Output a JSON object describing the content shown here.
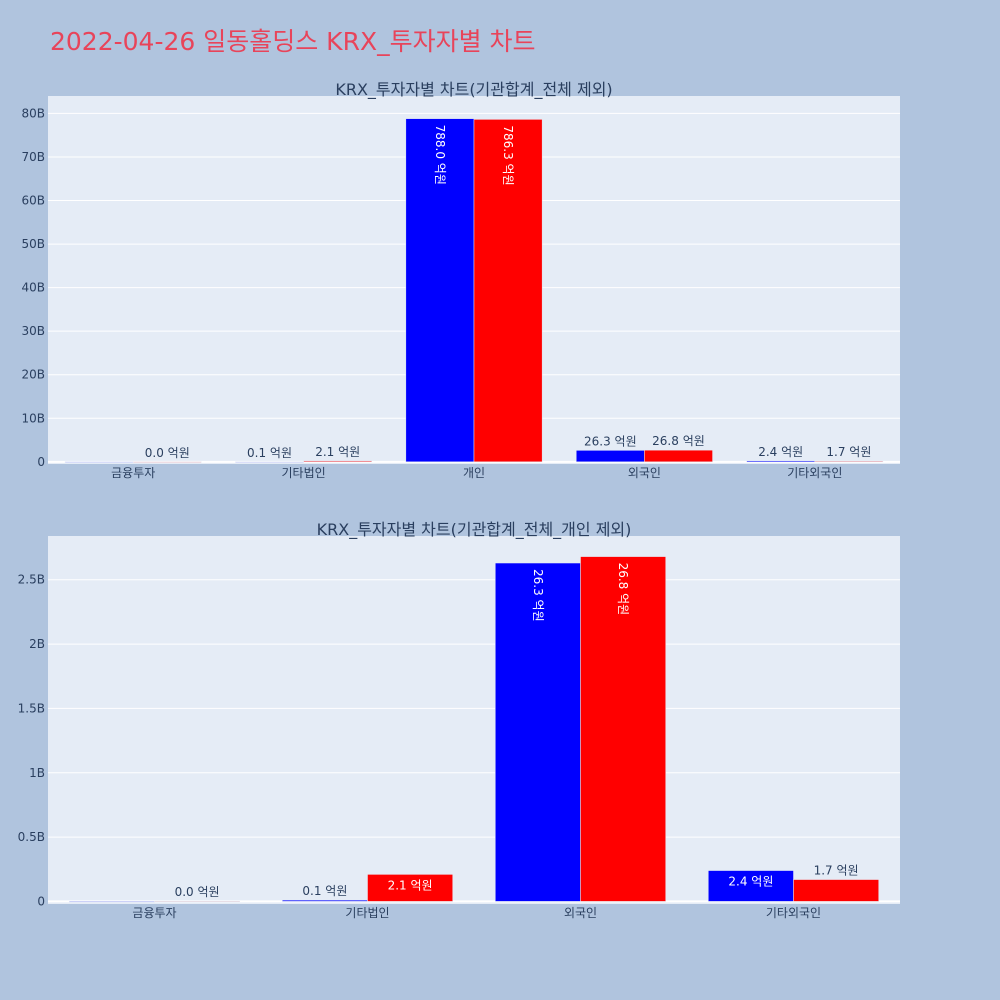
{
  "page_title": "2022-04-26 일동홀딩스 KRX_투자자별 차트",
  "colors": {
    "background": "#b0c4de",
    "plot_bg": "#e5ecf6",
    "title": "#e8445a",
    "series_a": "#0000ff",
    "series_b": "#ff0000"
  },
  "chart_data": [
    {
      "type": "bar",
      "title": "KRX_투자자별 차트(기관합계_전체 제외)",
      "categories": [
        "금융투자",
        "기타법인",
        "개인",
        "외국인",
        "기타외국인"
      ],
      "series": [
        {
          "color": "#0000ff",
          "values": [
            0,
            0.01,
            78.8,
            2.63,
            0.24
          ],
          "labels": [
            "",
            "0.1 억원",
            "788.0 억원",
            "26.3 억원",
            "2.4 억원"
          ]
        },
        {
          "color": "#ff0000",
          "values": [
            0,
            0.21,
            78.63,
            2.68,
            0.17
          ],
          "labels": [
            "0.0 억원",
            "2.1 억원",
            "786.3 억원",
            "26.8 억원",
            "1.7 억원"
          ]
        }
      ],
      "value_unit": "B",
      "ylim": [
        -0.5,
        84
      ],
      "yticks": [
        0,
        10,
        20,
        30,
        40,
        50,
        60,
        70,
        80
      ],
      "ytick_labels": [
        "0",
        "10B",
        "20B",
        "30B",
        "40B",
        "50B",
        "60B",
        "70B",
        "80B"
      ],
      "grid": true
    },
    {
      "type": "bar",
      "title": "KRX_투자자별 차트(기관합계_전체_개인 제외)",
      "categories": [
        "금융투자",
        "기타법인",
        "외국인",
        "기타외국인"
      ],
      "series": [
        {
          "color": "#0000ff",
          "values": [
            0,
            0.01,
            2.63,
            0.24
          ],
          "labels": [
            "",
            "0.1 억원",
            "26.3 억원",
            "2.4 억원"
          ]
        },
        {
          "color": "#ff0000",
          "values": [
            0.002,
            0.21,
            2.68,
            0.17
          ],
          "labels": [
            "0.0 억원",
            "2.1 억원",
            "26.8 억원",
            "1.7 억원"
          ]
        }
      ],
      "value_unit": "B",
      "ylim": [
        -0.02,
        2.84
      ],
      "yticks": [
        0,
        0.5,
        1,
        1.5,
        2,
        2.5
      ],
      "ytick_labels": [
        "0",
        "0.5B",
        "1B",
        "1.5B",
        "2B",
        "2.5B"
      ],
      "grid": true
    }
  ]
}
